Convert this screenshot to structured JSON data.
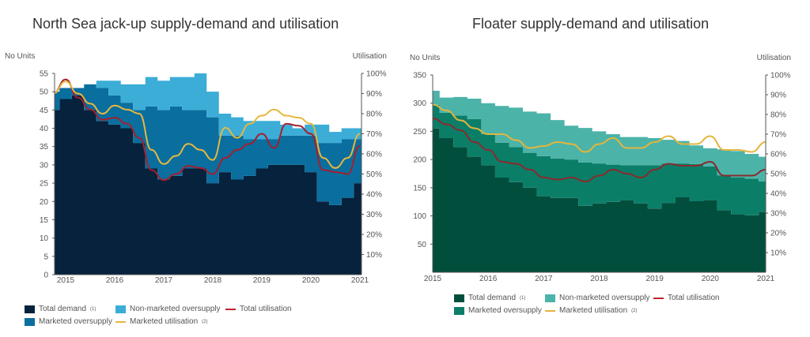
{
  "chart_data": [
    {
      "type": "area",
      "title": "North Sea jack-up supply-demand and utilisation",
      "ylabel": "No Units",
      "y2label": "Utilisation",
      "ylim": [
        0,
        55
      ],
      "yticks": [
        0,
        5,
        10,
        15,
        20,
        25,
        30,
        35,
        40,
        45,
        50,
        55
      ],
      "y2lim": [
        0,
        100
      ],
      "y2ticks": [
        "10%",
        "20%",
        "30%",
        "40%",
        "50%",
        "60%",
        "70%",
        "80%",
        "90%",
        "100%"
      ],
      "xlim": [
        2014.77,
        2021.03
      ],
      "xticks": [
        "2015",
        "2016",
        "2017",
        "2018",
        "2019",
        "2020",
        "2021"
      ],
      "x": [
        2014.75,
        2015,
        2015.25,
        2015.5,
        2015.75,
        2016,
        2016.25,
        2016.5,
        2016.75,
        2017,
        2017.25,
        2017.5,
        2017.75,
        2018,
        2018.25,
        2018.5,
        2018.75,
        2019,
        2019.25,
        2019.5,
        2019.75,
        2020,
        2020.25,
        2020.5,
        2020.75,
        2021
      ],
      "series": [
        {
          "name": "Total demand",
          "sup": "(1)",
          "kind": "area",
          "color": "#06223d",
          "values": [
            45,
            48,
            49,
            45,
            42,
            41,
            40,
            36,
            29,
            26,
            27,
            29,
            29,
            25,
            28,
            26,
            27,
            29,
            30,
            30,
            30,
            28,
            20,
            19,
            21,
            25
          ]
        },
        {
          "name": "Marketed oversupply",
          "sup": "",
          "kind": "area",
          "color": "#0a6e9f",
          "values": [
            5,
            3,
            2,
            7,
            9,
            8,
            7,
            9,
            17,
            19,
            19,
            16,
            16,
            18,
            10,
            12,
            10,
            8,
            7,
            8,
            8,
            10,
            16,
            17,
            16,
            12
          ]
        },
        {
          "name": "Non-marketed oversupply",
          "sup": "",
          "kind": "area",
          "color": "#3badd7",
          "values": [
            0,
            0,
            0,
            0,
            2,
            4,
            5,
            7,
            8,
            8,
            8,
            9,
            10,
            7,
            6,
            5,
            5,
            5,
            5,
            3,
            2,
            3,
            5,
            3,
            3,
            3
          ]
        },
        {
          "name": "Total utilisation",
          "sup": "",
          "kind": "line",
          "color": "#a51f2d",
          "values": [
            90,
            97,
            88,
            82,
            77,
            78,
            75,
            68,
            52,
            47,
            50,
            54,
            53,
            50,
            58,
            62,
            65,
            70,
            63,
            75,
            74,
            70,
            52,
            51,
            50,
            64
          ]
        },
        {
          "name": "Marketed utilisation",
          "sup": "(2)",
          "kind": "line",
          "color": "#e5b83f",
          "values": [
            90,
            96,
            90,
            85,
            80,
            84,
            82,
            80,
            62,
            55,
            59,
            65,
            62,
            57,
            73,
            68,
            75,
            79,
            82,
            79,
            78,
            75,
            58,
            53,
            58,
            70
          ]
        }
      ]
    },
    {
      "type": "area",
      "title": "Floater supply-demand and utilisation",
      "ylabel": "No Units",
      "y2label": "Utilisation",
      "ylim": [
        0,
        350
      ],
      "yticks": [
        50,
        100,
        150,
        200,
        250,
        300,
        350
      ],
      "y2lim": [
        0,
        100
      ],
      "y2ticks": [
        "10%",
        "20%",
        "30%",
        "40%",
        "50%",
        "60%",
        "70%",
        "80%",
        "90%",
        "100%"
      ],
      "xlim": [
        2015,
        2021
      ],
      "xticks": [
        "2015",
        "2016",
        "2017",
        "2018",
        "2019",
        "2020",
        "2021"
      ],
      "x": [
        2015,
        2015.25,
        2015.5,
        2015.75,
        2016,
        2016.25,
        2016.5,
        2016.75,
        2017,
        2017.25,
        2017.5,
        2017.75,
        2018,
        2018.25,
        2018.5,
        2018.75,
        2019,
        2019.25,
        2019.5,
        2019.75,
        2020,
        2020.25,
        2020.5,
        2020.75,
        2021
      ],
      "series": [
        {
          "name": "Total demand",
          "sup": "(1)",
          "kind": "area",
          "color": "#024e3c",
          "values": [
            255,
            238,
            222,
            205,
            190,
            168,
            160,
            150,
            135,
            132,
            132,
            118,
            122,
            125,
            128,
            122,
            113,
            123,
            133,
            126,
            128,
            110,
            103,
            101,
            107
          ]
        },
        {
          "name": "Marketed oversupply",
          "sup": "",
          "kind": "area",
          "color": "#0b7e68",
          "values": [
            42,
            45,
            56,
            67,
            55,
            62,
            62,
            62,
            71,
            70,
            68,
            77,
            71,
            66,
            62,
            68,
            77,
            70,
            60,
            66,
            60,
            62,
            65,
            65,
            54
          ]
        },
        {
          "name": "Non-marketed oversupply",
          "sup": "",
          "kind": "area",
          "color": "#4cb3a9",
          "values": [
            25,
            27,
            33,
            36,
            55,
            65,
            70,
            73,
            76,
            68,
            60,
            61,
            57,
            54,
            50,
            50,
            48,
            42,
            40,
            33,
            32,
            46,
            47,
            44,
            44
          ]
        },
        {
          "name": "Total utilisation",
          "sup": "",
          "kind": "line",
          "color": "#8a2a2e",
          "values": [
            78,
            75,
            72,
            66,
            62,
            56,
            55,
            52,
            48,
            47,
            48,
            46,
            49,
            52,
            50,
            48,
            52,
            55,
            54,
            54,
            56,
            49,
            49,
            49,
            52
          ]
        },
        {
          "name": "Marketed utilisation",
          "sup": "(2)",
          "kind": "line",
          "color": "#e3b53d",
          "values": [
            85,
            82,
            77,
            73,
            70,
            70,
            67,
            63,
            64,
            66,
            65,
            61,
            65,
            68,
            63,
            63,
            66,
            69,
            65,
            65,
            69,
            62,
            62,
            61,
            66
          ]
        }
      ]
    }
  ]
}
